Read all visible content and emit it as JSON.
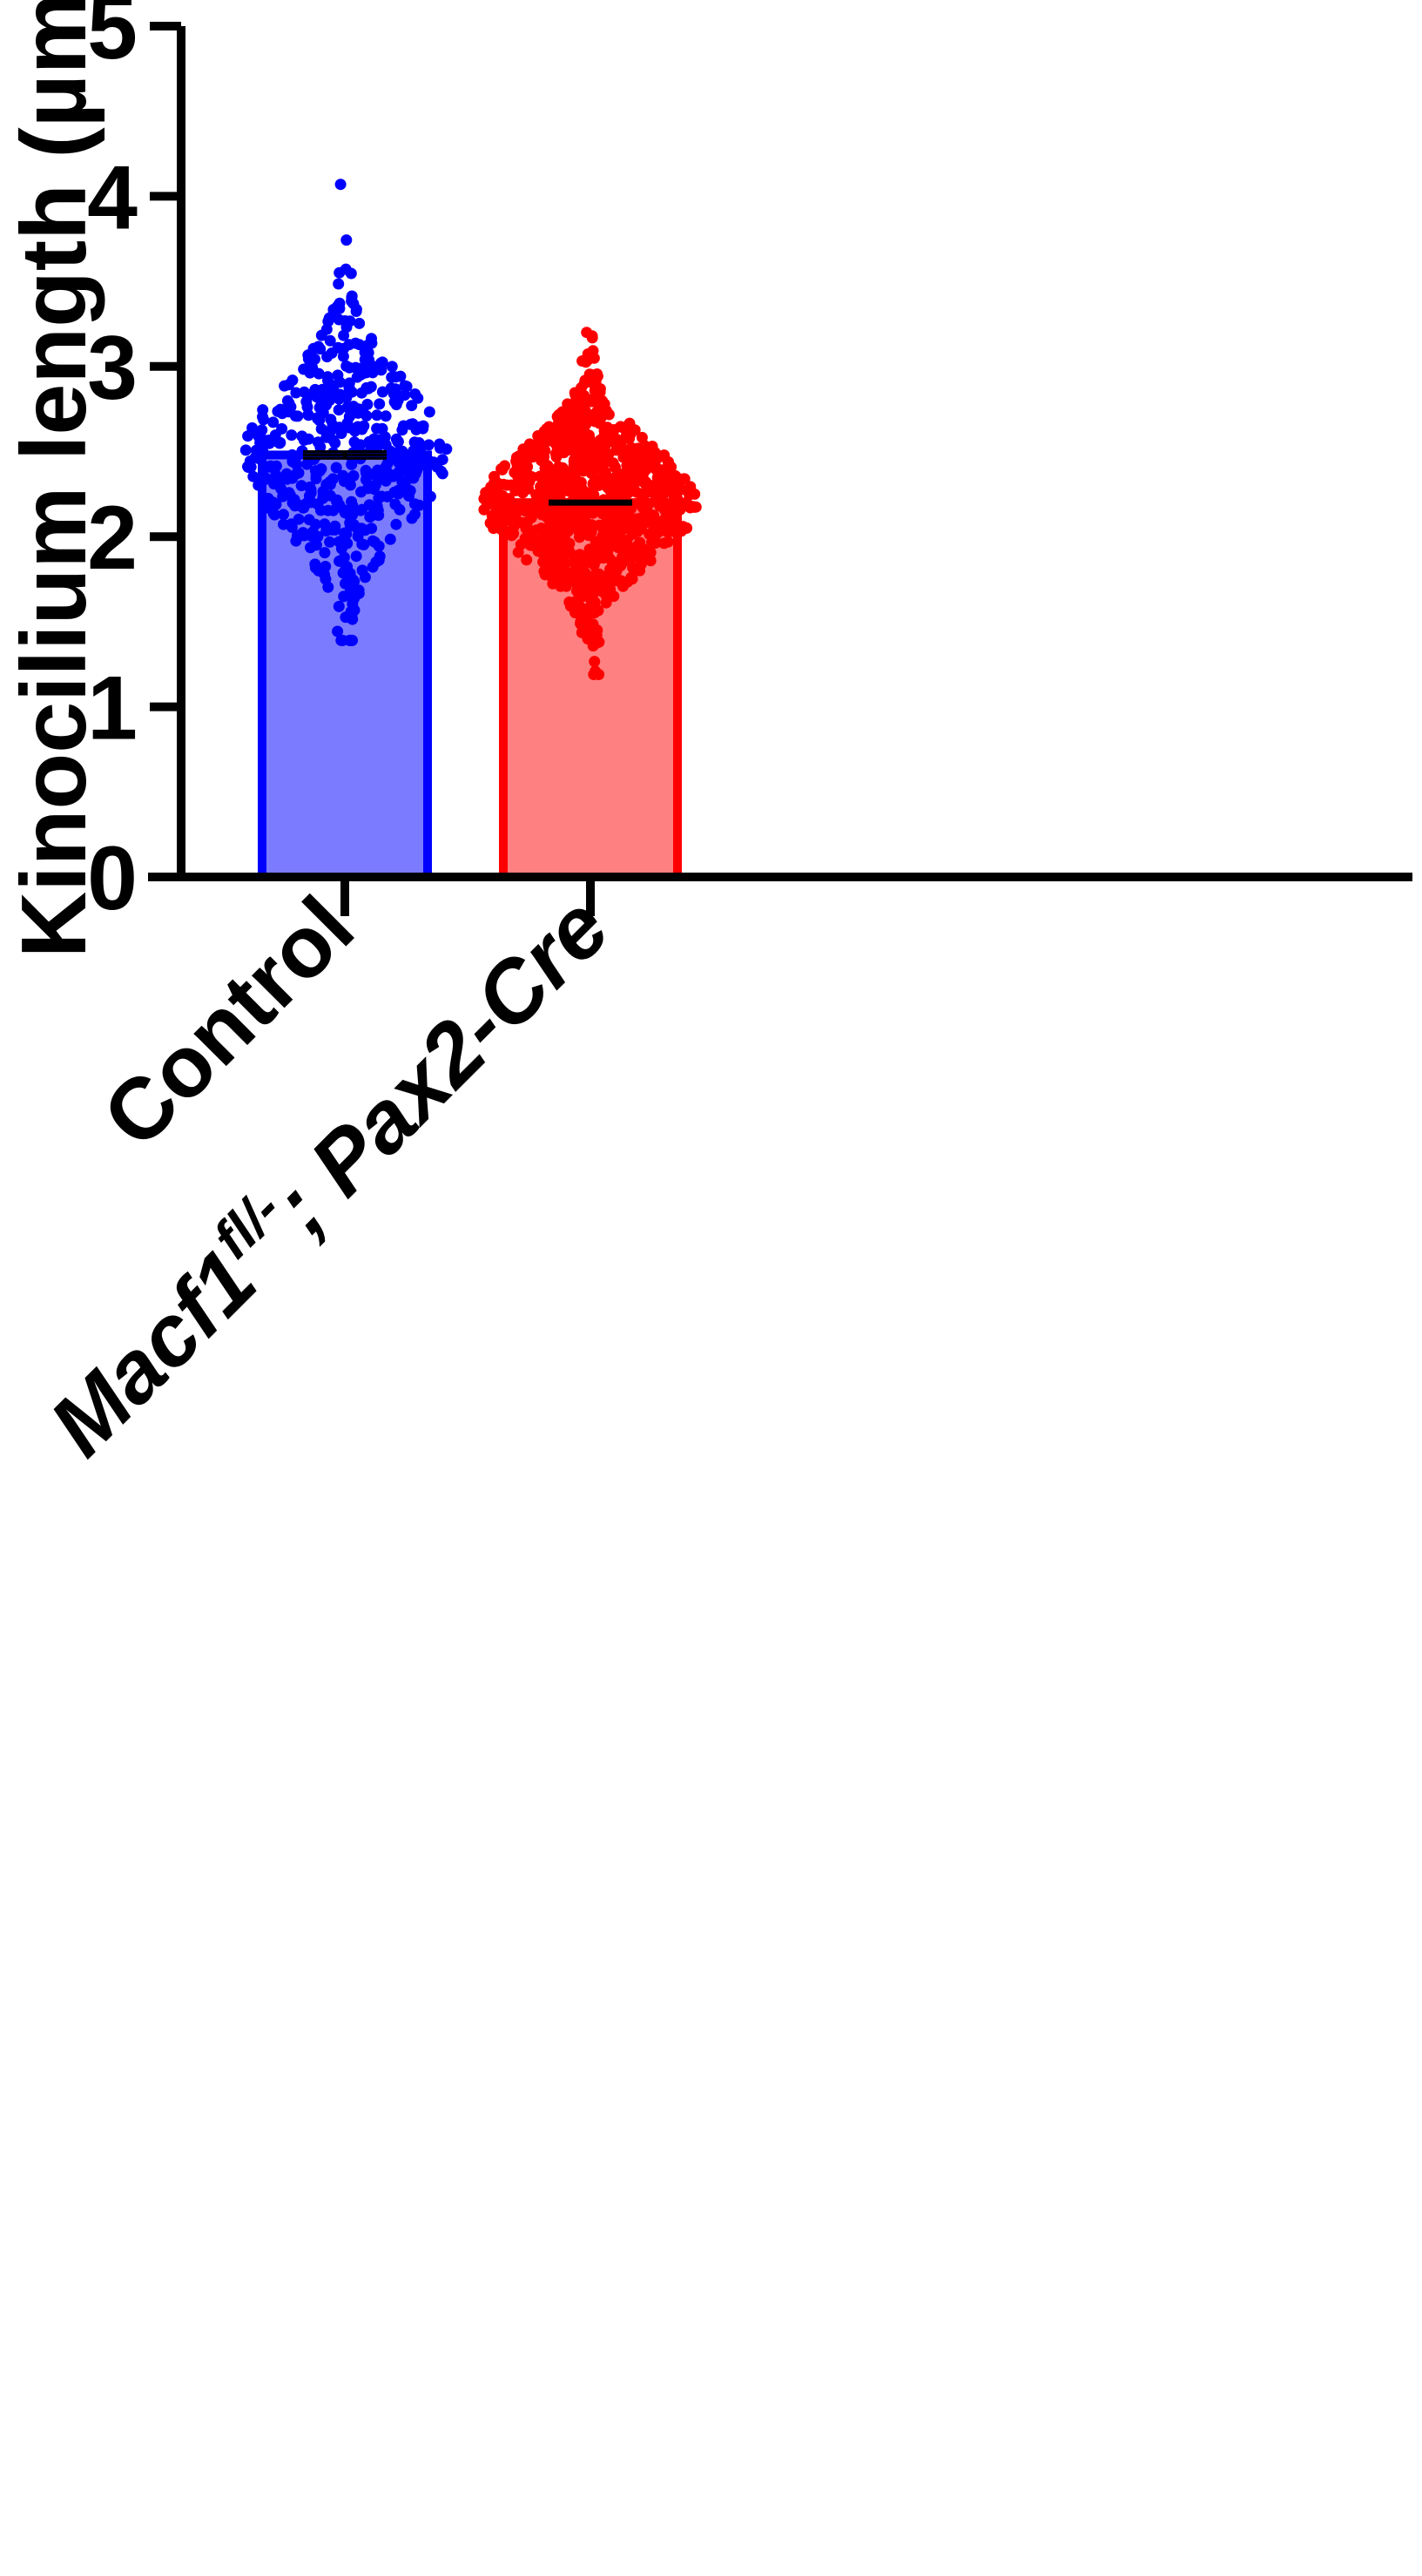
{
  "chart_data": {
    "type": "bar",
    "ylabel": "Kinocilium length (µm)",
    "ylim": [
      0,
      5
    ],
    "yticks": [
      "0",
      "1",
      "2",
      "3",
      "4",
      "5"
    ],
    "categories": [
      {
        "label": "Control",
        "label_main": "Control",
        "label_sup": "",
        "label_suffix": ""
      },
      {
        "label": "Macf1fl/-; Pax2-Cre",
        "label_main": "Macf1",
        "label_sup": "fl/-",
        "label_suffix": "; Pax2-Cre"
      }
    ],
    "bars": [
      {
        "category": "Control",
        "mean": 2.48,
        "sem": 0.02,
        "color": "#0000ff",
        "fill": "#7b7bff",
        "n_points": 520,
        "points_min": 1.39,
        "points_max": 4.07,
        "points_sd": 0.42
      },
      {
        "category": "Macf1fl/-; Pax2-Cre",
        "mean": 2.2,
        "sem": 0.01,
        "color": "#ff0000",
        "fill": "#ff8080",
        "n_points": 900,
        "points_min": 1.19,
        "points_max": 3.2,
        "points_sd": 0.33
      }
    ],
    "grid": false,
    "legend": "none"
  }
}
